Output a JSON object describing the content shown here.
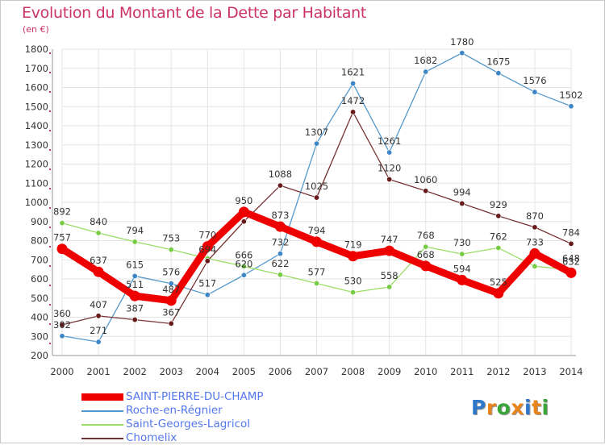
{
  "title": "Evolution du Montant de la Dette par Habitant",
  "unit": "(en €)",
  "brand": {
    "letters": [
      "P",
      "r",
      "o",
      "x",
      "i",
      "t",
      "i"
    ],
    "colors": [
      "#2f77c8",
      "#e8841a",
      "#3aa63a",
      "#e8841a",
      "#2f77c8",
      "#e8841a",
      "#3aa63a"
    ]
  },
  "chart_data": {
    "type": "line",
    "title": "Evolution du Montant de la Dette par Habitant",
    "ylabel": "(en €)",
    "xlabel": "",
    "categories": [
      "2000",
      "2001",
      "2002",
      "2003",
      "2004",
      "2005",
      "2006",
      "2007",
      "2008",
      "2009",
      "2010",
      "2011",
      "2012",
      "2013",
      "2014"
    ],
    "ylim": [
      200,
      1800
    ],
    "yticks": [
      200,
      300,
      400,
      500,
      600,
      700,
      800,
      900,
      1000,
      1100,
      1200,
      1300,
      1400,
      1500,
      1600,
      1700,
      1800
    ],
    "grid": true,
    "legend_position": "bottom-left",
    "series": [
      {
        "name": "Roche-en-Régnier",
        "color": "#5599cc",
        "marker": "#3f86c6",
        "width": 1.3,
        "values": [
          302,
          271,
          615,
          576,
          517,
          620,
          732,
          1307,
          1621,
          1261,
          1682,
          1780,
          1675,
          1576,
          1502
        ],
        "labels": [
          "302",
          "271",
          "615",
          "576",
          "517",
          "620",
          "732",
          "1307",
          "1621",
          "1261",
          "1682",
          "1780",
          "1675",
          "1576",
          "1502"
        ]
      },
      {
        "name": "Saint-Georges-Lagricol",
        "color": "#99dd66",
        "marker": "#77cc44",
        "width": 1.3,
        "values": [
          892,
          840,
          794,
          753,
          707,
          666,
          622,
          577,
          530,
          558,
          768,
          730,
          762,
          666,
          648
        ],
        "labels": [
          "892",
          "840",
          "794",
          "753",
          "",
          "666",
          "622",
          "577",
          "530",
          "558",
          "768",
          "730",
          "762",
          "",
          "648"
        ]
      },
      {
        "name": "Chomelix",
        "color": "#773333",
        "marker": "#661a1a",
        "width": 1.3,
        "values": [
          360,
          407,
          387,
          367,
          694,
          900,
          1088,
          1025,
          1472,
          1120,
          1060,
          994,
          929,
          870,
          784
        ],
        "labels": [
          "360",
          "407",
          "387",
          "367",
          "694",
          "",
          "1088",
          "1025",
          "1472",
          "1120",
          "1060",
          "994",
          "929",
          "870",
          "784"
        ]
      },
      {
        "name": "SAINT-PIERRE-DU-CHAMP",
        "color": "#ee0000",
        "marker": "#ee0000",
        "width": 9,
        "values": [
          757,
          637,
          511,
          487,
          770,
          950,
          873,
          794,
          719,
          747,
          668,
          594,
          525,
          733,
          632
        ],
        "labels": [
          "757",
          "637",
          "511",
          "487",
          "770",
          "950",
          "873",
          "794",
          "719",
          "747",
          "668",
          "594",
          "525",
          "733",
          "632"
        ]
      }
    ]
  },
  "legend": [
    {
      "label": "SAINT-PIERRE-DU-CHAMP",
      "color": "#ee0000",
      "text_color": "#5577ee"
    },
    {
      "label": "Roche-en-Régnier",
      "color": "#5599cc",
      "text_color": "#5577ee"
    },
    {
      "label": "Saint-Georges-Lagricol",
      "color": "#99dd66",
      "text_color": "#5577ee"
    },
    {
      "label": "Chomelix",
      "color": "#773333",
      "text_color": "#5577ee"
    }
  ]
}
